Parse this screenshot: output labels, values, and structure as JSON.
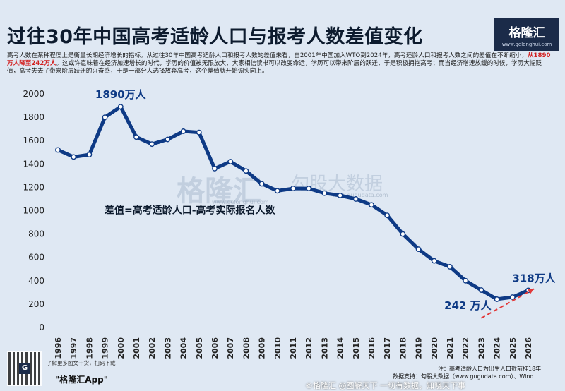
{
  "header": {
    "title": "过往30年中国高考适龄人口与报考人数差值变化",
    "logo_text": "格隆汇",
    "logo_url": "www.gelonghui.com"
  },
  "description": {
    "part1": "高考人数在某种程度上是衡量长期经济增长的指标。从过往30年中国高考适龄人口和报考人数的差值来看，自2001年中国加入WTO到2024年，高考适龄人口和报考人数之间的差值在不断缩小，",
    "highlight": "从1890万人降至242万人",
    "part2": "。这或许意味着在经济加速增长的时代，学历的价值被无限放大，大家相信读书可以改变命运，学历可以带来阶层的跃迁，于是积极拥抱高考；而当经济增速放缓的时候，学历大幅贬值，高考失去了带来阶层跃迁的兴奋感，于是一部分人选择放弃高考，这个差值就开始调头向上。"
  },
  "watermark": {
    "brand1": "格隆汇",
    "brand2": "勾股大数据",
    "url1": "www.gelonghui.com",
    "url2": "www.gugudata.com"
  },
  "footer": {
    "qr_hint": "了解更多图文干货，扫码下载",
    "app_label": "\"格隆汇App\"",
    "note": "注：高考适龄人口为出生人口数前推18年",
    "source": "数据支持：勾股大数据（www.gugudata.com）、Wind",
    "watermark_line": "©格隆汇 @图解天下 一切有数据，知晓天下事"
  },
  "colors": {
    "line": "#0e3a85",
    "annotation": "#0e3a85",
    "trend": "#e23a3a",
    "grid": "#c9d6e6"
  },
  "chart_data": {
    "type": "line",
    "title": "过往30年中国高考适龄人口与报考人数差值变化",
    "x": [
      "1996",
      "1997",
      "1998",
      "1999",
      "2000",
      "2001",
      "2002",
      "2003",
      "2004",
      "2005",
      "2006",
      "2007",
      "2008",
      "2009",
      "2010",
      "2011",
      "2012",
      "2013",
      "2014",
      "2015",
      "2016",
      "2017",
      "2018",
      "2019",
      "2020",
      "2021",
      "2022",
      "2023",
      "2024",
      "2025",
      "2026"
    ],
    "series": [
      {
        "name": "差值=高考适龄人口-高考实际报名人数",
        "values": [
          1520,
          1460,
          1480,
          1800,
          1890,
          1630,
          1570,
          1610,
          1680,
          1670,
          1360,
          1420,
          1340,
          1230,
          1170,
          1190,
          1190,
          1150,
          1130,
          1100,
          1050,
          960,
          800,
          670,
          570,
          520,
          400,
          320,
          242,
          260,
          318
        ]
      }
    ],
    "ylim": [
      0,
      2000
    ],
    "yticks": [
      0,
      200,
      400,
      600,
      800,
      1000,
      1200,
      1400,
      1600,
      1800,
      2000
    ],
    "grid": false,
    "annotations": [
      {
        "label": "1890万人",
        "x": "2000",
        "y": 1890
      },
      {
        "label": "242 万人",
        "x": "2024",
        "y": 242
      },
      {
        "label": "318万人",
        "x": "2026",
        "y": 318
      }
    ],
    "series_label": "差值=高考适龄人口-高考实际报名人数",
    "trend_arrow": {
      "from": [
        "2023",
        80
      ],
      "to": [
        "2026",
        330
      ]
    }
  }
}
